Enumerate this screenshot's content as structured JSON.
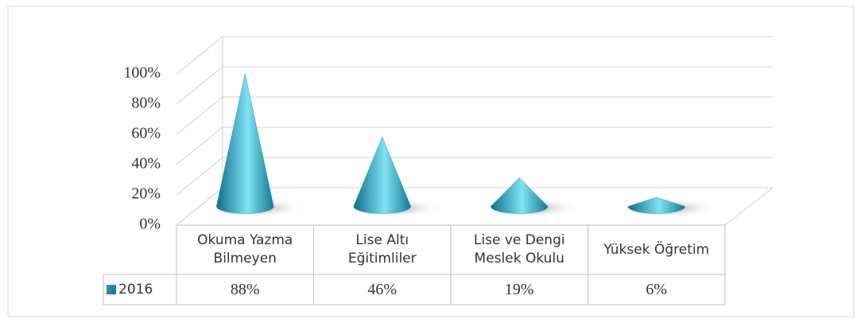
{
  "chart_data": {
    "type": "cone",
    "categories": [
      "Okuma Yazma Bilmeyen",
      "Lise Altı Eğitimliler",
      "Lise ve Dengi Meslek Okulu",
      "Yüksek Öğretim"
    ],
    "series": [
      {
        "name": "2016",
        "color": "#2aa3c2",
        "values": [
          88,
          46,
          19,
          6
        ],
        "value_labels": [
          "88%",
          "46%",
          "19%",
          "6%"
        ]
      }
    ],
    "ylim": [
      0,
      100
    ],
    "yticks": [
      {
        "value": 0,
        "label": "0%"
      },
      {
        "value": 20,
        "label": "20%"
      },
      {
        "value": 40,
        "label": "40%"
      },
      {
        "value": 60,
        "label": "60%"
      },
      {
        "value": 80,
        "label": "80%"
      },
      {
        "value": 100,
        "label": "100%"
      }
    ],
    "grid": true
  }
}
